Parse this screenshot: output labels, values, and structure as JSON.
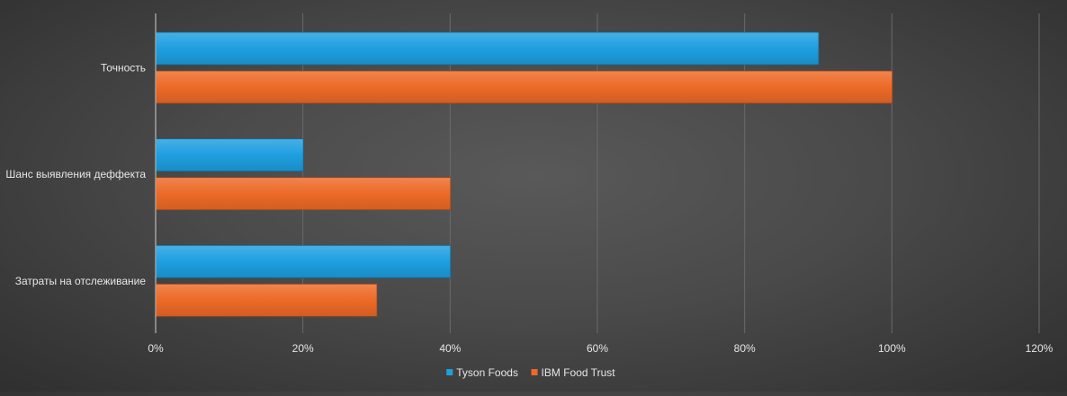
{
  "chart_data": {
    "type": "bar",
    "orientation": "horizontal",
    "categories": [
      "Точность",
      "Шанс выявления деффекта",
      "Затраты на отслеживание"
    ],
    "series": [
      {
        "name": "Tyson Foods",
        "values": [
          90,
          20,
          40
        ],
        "color": "#1E9FE0"
      },
      {
        "name": "IBM Food Trust",
        "values": [
          100,
          40,
          30
        ],
        "color": "#ED6A27"
      }
    ],
    "value_unit": "%",
    "xlim": [
      0,
      120
    ],
    "xticks": [
      "0%",
      "20%",
      "40%",
      "60%",
      "80%",
      "100%",
      "120%"
    ],
    "grid": "vertical",
    "legend_position": "bottom",
    "title": "",
    "xlabel": "",
    "ylabel": ""
  }
}
